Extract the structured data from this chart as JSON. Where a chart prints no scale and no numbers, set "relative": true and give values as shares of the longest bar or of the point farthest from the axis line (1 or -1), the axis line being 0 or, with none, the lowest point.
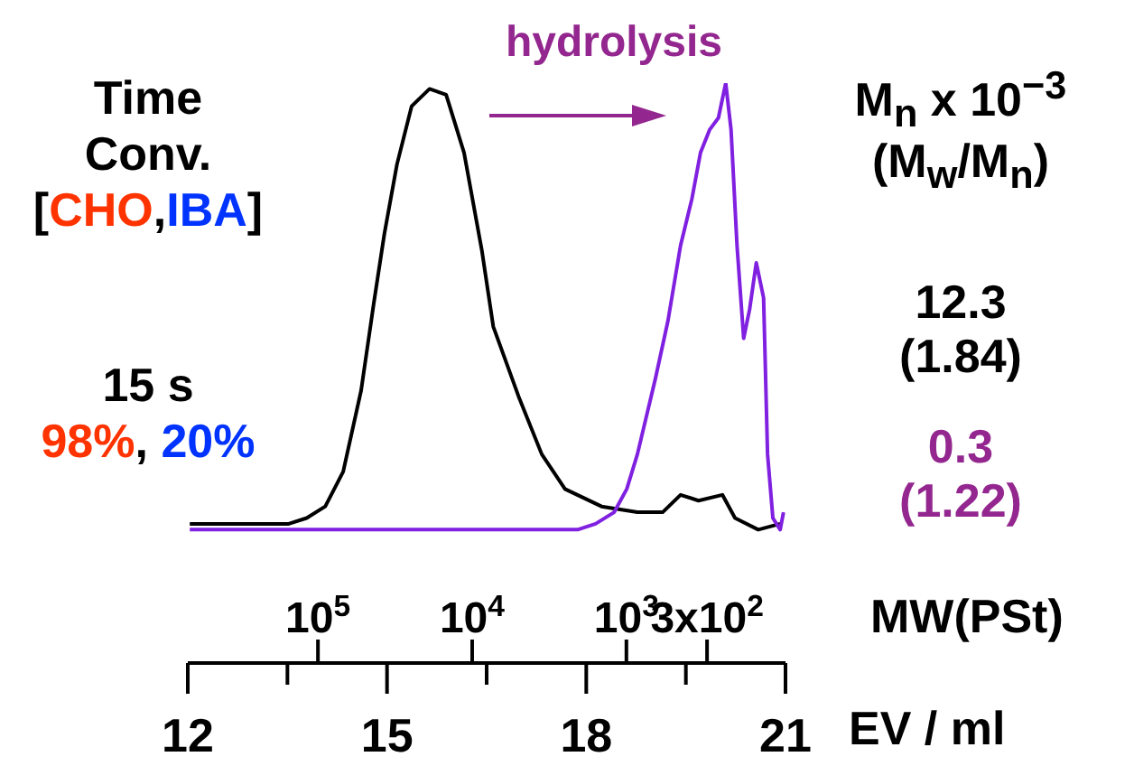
{
  "chart_data": {
    "type": "line",
    "relative": true,
    "xlabel": "EV / ml",
    "x2label": "MW(PSt)",
    "xlim": [
      12,
      21
    ],
    "xticks": [
      12,
      {
        "value": 13.5,
        "label": null
      },
      15,
      {
        "value": 16.5,
        "label": null
      },
      18,
      {
        "value": 19.5,
        "label": null
      },
      21
    ],
    "x2lim": [
      698000,
      93
    ],
    "x2ticks": [
      {
        "value": 100000,
        "label": "10$^{5}$"
      },
      {
        "value": 10000,
        "label": "10$^{4}$"
      },
      {
        "value": 1000,
        "label": "10$^{3}$"
      },
      {
        "value": 300,
        "label": "3x10$^{2}$"
      }
    ],
    "log": "x2",
    "marker": "none",
    "line_style": "solid",
    "annotations": [
      "Time",
      "Conv.",
      "[",
      "CHO",
      ",",
      "IBA",
      "]",
      "15 s",
      "98%",
      ", ",
      "20%",
      "hydrolysis",
      "M$_{n}$ x 10$^{−3}$",
      "(M$_{w}$/M$_{n}$)",
      "12.3",
      "(1.84)",
      "0.3",
      "(1.22)"
    ],
    "series": [
      {
        "color": "#000000",
        "x": [
          12.03,
          13.52,
          13.79,
          14.07,
          14.34,
          14.61,
          14.8,
          14.96,
          15.15,
          15.37,
          15.64,
          15.89,
          16.16,
          16.43,
          16.6,
          16.98,
          17.33,
          17.68,
          18.23,
          18.77,
          19.15,
          19.42,
          19.69,
          20.05,
          20.24,
          20.59,
          20.92
        ],
        "values": [
          0.24,
          0.24,
          0.25,
          0.27,
          0.33,
          0.47,
          0.62,
          0.74,
          0.86,
          0.96,
          0.99,
          0.98,
          0.88,
          0.71,
          0.58,
          0.46,
          0.36,
          0.3,
          0.27,
          0.26,
          0.26,
          0.29,
          0.28,
          0.29,
          0.25,
          0.23,
          0.24
        ]
      },
      {
        "color": "#8020e0",
        "x": [
          12.03,
          17.87,
          18.14,
          18.42,
          18.61,
          18.77,
          19.04,
          19.23,
          19.42,
          19.59,
          19.72,
          19.86,
          19.99,
          20.1,
          20.18,
          20.27,
          20.37,
          20.46,
          20.56,
          20.67,
          20.73,
          20.81,
          20.92,
          20.97
        ],
        "values": [
          0.23,
          0.23,
          0.24,
          0.26,
          0.3,
          0.36,
          0.49,
          0.59,
          0.72,
          0.8,
          0.88,
          0.92,
          0.94,
          1,
          0.92,
          0.72,
          0.56,
          0.61,
          0.69,
          0.63,
          0.36,
          0.25,
          0.23,
          0.26
        ]
      }
    ]
  }
}
